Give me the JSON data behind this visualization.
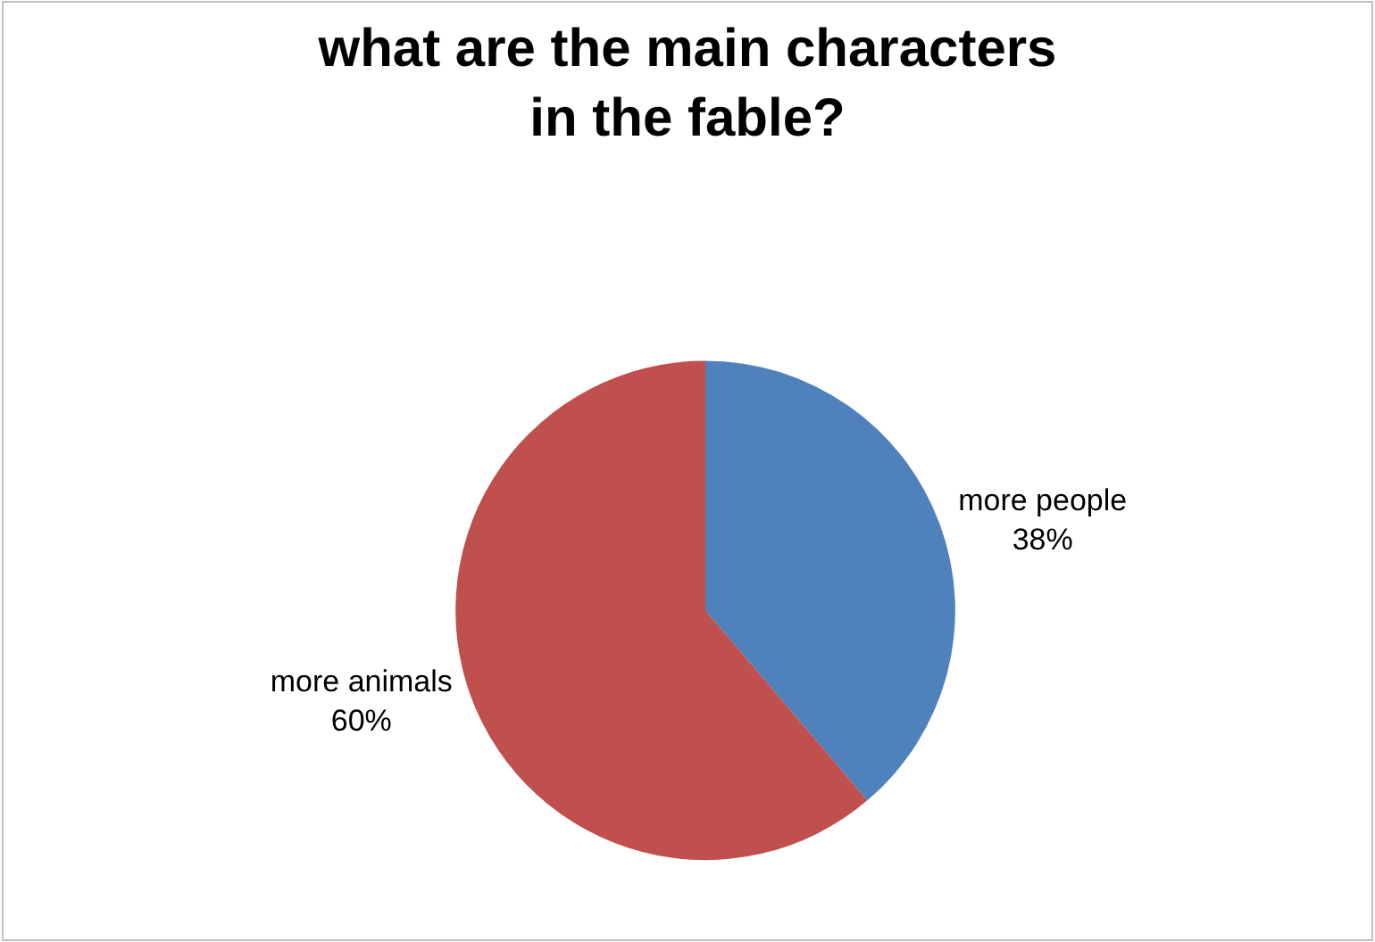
{
  "chart_data": {
    "type": "pie",
    "title": "what are the main characters in the fable?",
    "categories": [
      "more people",
      "more animals"
    ],
    "values": [
      38,
      60
    ],
    "colors": [
      "#4f81bd",
      "#c0504d"
    ],
    "value_labels": [
      "38%",
      "60%"
    ],
    "legend": false
  }
}
